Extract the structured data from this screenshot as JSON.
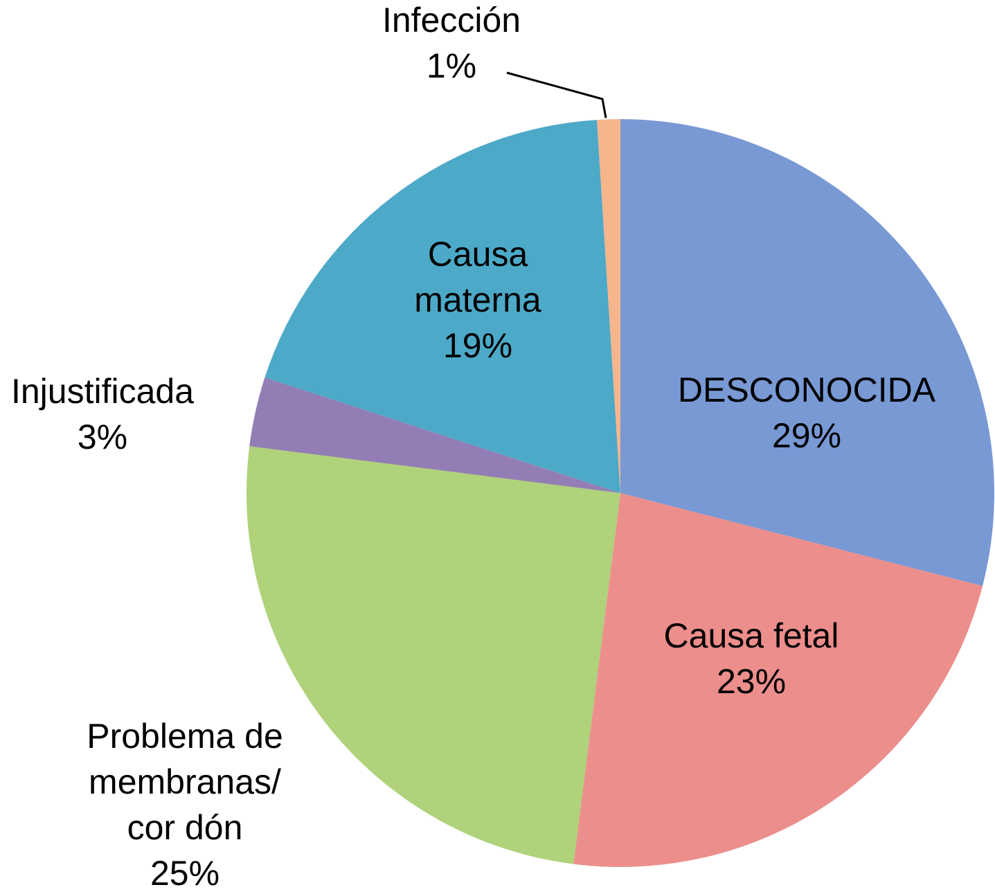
{
  "chart_data": {
    "type": "pie",
    "start_angle_deg": 0,
    "direction": "clockwise",
    "slices": [
      {
        "label": [
          "DESCONOCIDA"
        ],
        "value": 29,
        "value_label": "29%",
        "color": "#7899D4"
      },
      {
        "label": [
          "Causa fetal"
        ],
        "value": 23,
        "value_label": "23%",
        "color": "#EC8E8C"
      },
      {
        "label": [
          "Problema de",
          "membranas/",
          "cor dón"
        ],
        "value": 25,
        "value_label": "25%",
        "color": "#AFD27A"
      },
      {
        "label": [
          "Injustificada"
        ],
        "value": 3,
        "value_label": "3%",
        "color": "#927EB4"
      },
      {
        "label": [
          "Causa",
          "materna"
        ],
        "value": 19,
        "value_label": "19%",
        "color": "#4DA9C8"
      },
      {
        "label": [
          "Infección"
        ],
        "value": 1,
        "value_label": "1%",
        "color": "#F7B58C"
      }
    ]
  }
}
